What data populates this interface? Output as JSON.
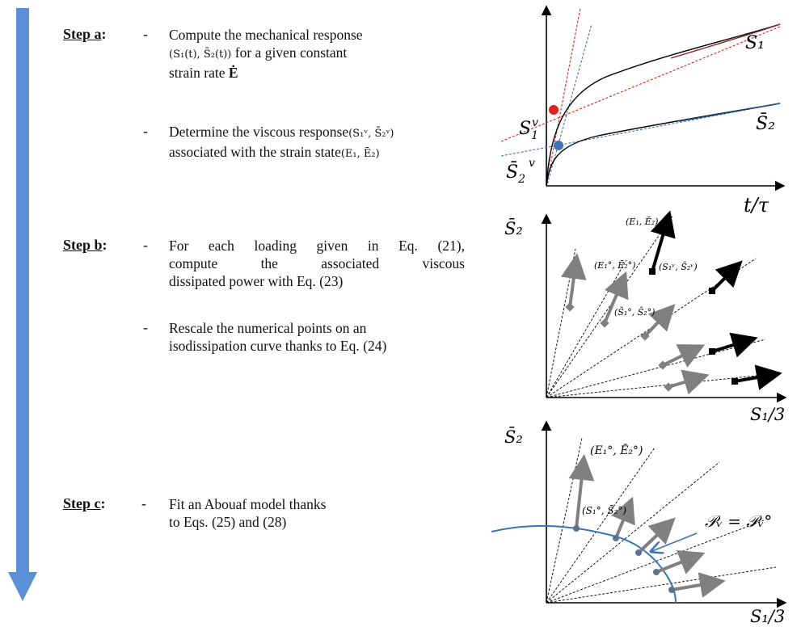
{
  "steps": {
    "a": {
      "label": "Step a",
      "colon": ":",
      "bullet1_pre": "Compute the mechanical response",
      "bullet1_math": "(S₁(t), S̄₂(t))",
      "bullet1_post": "for a given constant",
      "bullet1_line3": "strain rate",
      "bullet1_math2": "Ė",
      "bullet2_pre": "Determine the viscous response",
      "bullet2_math": "(S₁ᵛ, S̄₂ᵛ)",
      "bullet2_line2": "associated with the strain state",
      "bullet2_math2": "(E₁, Ē₂)"
    },
    "b": {
      "label": "Step b",
      "colon": ":",
      "bullet1_line1": "For each loading given in Eq. (21),",
      "bullet1_line2": "compute the associated viscous",
      "bullet1_line3": "dissipated power with Eq. (23)",
      "bullet2_line1": "Rescale the numerical points on an",
      "bullet2_line2": "isodissipation curve thanks to Eq. (24)"
    },
    "c": {
      "label": "Step c",
      "colon": ":",
      "bullet1_line1": "Fit an Abouaf model thanks",
      "bullet1_line2": "to Eqs. (25) and (28)"
    },
    "dash": "-"
  },
  "plot1": {
    "curve_label_top": "S₁",
    "curve_label_bottom": "S̄₂",
    "point_label_top_base": "S",
    "point_label_top_sub": "1",
    "point_label_top_sup": "v",
    "point_label_bottom_base": "S̄",
    "point_label_bottom_sub": "2",
    "point_label_bottom_sup": "v",
    "xlabel": "t/τ",
    "red_color": "#e3211c",
    "blue_color": "#3b73b9"
  },
  "plot2": {
    "ylabel": "S̄₂",
    "xlabel": "S₁/3",
    "label_E": "(E₁, Ē₂)",
    "label_E0": "(E₁°, Ē₂°)",
    "label_Sv": "(S₁ᵛ, S̄₂ᵛ)",
    "label_S0": "(S̄₁°, S̄₂°)"
  },
  "plot3": {
    "ylabel": "S̄₂",
    "xlabel": "S₁/3",
    "label_E0": "(E₁°, Ē₂°)",
    "label_S0": "(S₁°, S̄₂°)",
    "label_P": "𝒫ᵥ = 𝒫ᵥ°",
    "curve_color": "#3b73b9"
  },
  "colors": {
    "flow_arrow": "#5b8fd6",
    "grey_arrow": "#808080"
  }
}
